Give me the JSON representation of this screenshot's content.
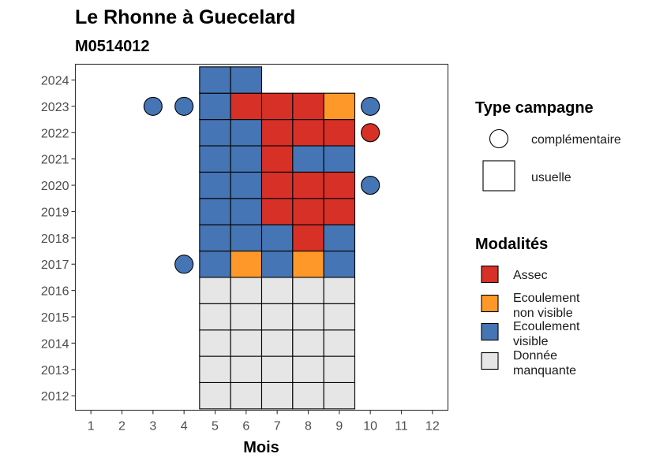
{
  "chart_data": {
    "type": "heatmap",
    "title": "Le Rhonne à Guecelard",
    "subtitle": "M0514012",
    "xlabel": "Mois",
    "ylabel": "",
    "x_ticks": [
      "1",
      "2",
      "3",
      "4",
      "5",
      "6",
      "7",
      "8",
      "9",
      "10",
      "11",
      "12"
    ],
    "y_ticks": [
      "2012",
      "2013",
      "2014",
      "2015",
      "2016",
      "2017",
      "2018",
      "2019",
      "2020",
      "2021",
      "2022",
      "2023",
      "2024"
    ],
    "xlim": [
      0.5,
      12.5
    ],
    "ylim": [
      2011.45,
      2024.6
    ],
    "grid": false,
    "colors": {
      "Assec": "#d73027",
      "Ecoulement non visible": "#fe9929",
      "Ecoulement visible": "#4575b4",
      "Donnée manquante": "#e6e6e6"
    },
    "cells": [
      {
        "year": 2012,
        "month": 5,
        "type": "usuelle",
        "modalite": "Donnée manquante"
      },
      {
        "year": 2012,
        "month": 6,
        "type": "usuelle",
        "modalite": "Donnée manquante"
      },
      {
        "year": 2012,
        "month": 7,
        "type": "usuelle",
        "modalite": "Donnée manquante"
      },
      {
        "year": 2012,
        "month": 8,
        "type": "usuelle",
        "modalite": "Donnée manquante"
      },
      {
        "year": 2012,
        "month": 9,
        "type": "usuelle",
        "modalite": "Donnée manquante"
      },
      {
        "year": 2013,
        "month": 5,
        "type": "usuelle",
        "modalite": "Donnée manquante"
      },
      {
        "year": 2013,
        "month": 6,
        "type": "usuelle",
        "modalite": "Donnée manquante"
      },
      {
        "year": 2013,
        "month": 7,
        "type": "usuelle",
        "modalite": "Donnée manquante"
      },
      {
        "year": 2013,
        "month": 8,
        "type": "usuelle",
        "modalite": "Donnée manquante"
      },
      {
        "year": 2013,
        "month": 9,
        "type": "usuelle",
        "modalite": "Donnée manquante"
      },
      {
        "year": 2014,
        "month": 5,
        "type": "usuelle",
        "modalite": "Donnée manquante"
      },
      {
        "year": 2014,
        "month": 6,
        "type": "usuelle",
        "modalite": "Donnée manquante"
      },
      {
        "year": 2014,
        "month": 7,
        "type": "usuelle",
        "modalite": "Donnée manquante"
      },
      {
        "year": 2014,
        "month": 8,
        "type": "usuelle",
        "modalite": "Donnée manquante"
      },
      {
        "year": 2014,
        "month": 9,
        "type": "usuelle",
        "modalite": "Donnée manquante"
      },
      {
        "year": 2015,
        "month": 5,
        "type": "usuelle",
        "modalite": "Donnée manquante"
      },
      {
        "year": 2015,
        "month": 6,
        "type": "usuelle",
        "modalite": "Donnée manquante"
      },
      {
        "year": 2015,
        "month": 7,
        "type": "usuelle",
        "modalite": "Donnée manquante"
      },
      {
        "year": 2015,
        "month": 8,
        "type": "usuelle",
        "modalite": "Donnée manquante"
      },
      {
        "year": 2015,
        "month": 9,
        "type": "usuelle",
        "modalite": "Donnée manquante"
      },
      {
        "year": 2016,
        "month": 5,
        "type": "usuelle",
        "modalite": "Donnée manquante"
      },
      {
        "year": 2016,
        "month": 6,
        "type": "usuelle",
        "modalite": "Donnée manquante"
      },
      {
        "year": 2016,
        "month": 7,
        "type": "usuelle",
        "modalite": "Donnée manquante"
      },
      {
        "year": 2016,
        "month": 8,
        "type": "usuelle",
        "modalite": "Donnée manquante"
      },
      {
        "year": 2016,
        "month": 9,
        "type": "usuelle",
        "modalite": "Donnée manquante"
      },
      {
        "year": 2017,
        "month": 4,
        "type": "complémentaire",
        "modalite": "Ecoulement visible"
      },
      {
        "year": 2017,
        "month": 5,
        "type": "usuelle",
        "modalite": "Ecoulement visible"
      },
      {
        "year": 2017,
        "month": 6,
        "type": "usuelle",
        "modalite": "Ecoulement non visible"
      },
      {
        "year": 2017,
        "month": 7,
        "type": "usuelle",
        "modalite": "Ecoulement visible"
      },
      {
        "year": 2017,
        "month": 8,
        "type": "usuelle",
        "modalite": "Ecoulement non visible"
      },
      {
        "year": 2017,
        "month": 9,
        "type": "usuelle",
        "modalite": "Ecoulement visible"
      },
      {
        "year": 2018,
        "month": 5,
        "type": "usuelle",
        "modalite": "Ecoulement visible"
      },
      {
        "year": 2018,
        "month": 6,
        "type": "usuelle",
        "modalite": "Ecoulement visible"
      },
      {
        "year": 2018,
        "month": 7,
        "type": "usuelle",
        "modalite": "Ecoulement visible"
      },
      {
        "year": 2018,
        "month": 8,
        "type": "usuelle",
        "modalite": "Assec"
      },
      {
        "year": 2018,
        "month": 9,
        "type": "usuelle",
        "modalite": "Ecoulement visible"
      },
      {
        "year": 2019,
        "month": 5,
        "type": "usuelle",
        "modalite": "Ecoulement visible"
      },
      {
        "year": 2019,
        "month": 6,
        "type": "usuelle",
        "modalite": "Ecoulement visible"
      },
      {
        "year": 2019,
        "month": 7,
        "type": "usuelle",
        "modalite": "Assec"
      },
      {
        "year": 2019,
        "month": 8,
        "type": "usuelle",
        "modalite": "Assec"
      },
      {
        "year": 2019,
        "month": 9,
        "type": "usuelle",
        "modalite": "Assec"
      },
      {
        "year": 2020,
        "month": 5,
        "type": "usuelle",
        "modalite": "Ecoulement visible"
      },
      {
        "year": 2020,
        "month": 6,
        "type": "usuelle",
        "modalite": "Ecoulement visible"
      },
      {
        "year": 2020,
        "month": 7,
        "type": "usuelle",
        "modalite": "Assec"
      },
      {
        "year": 2020,
        "month": 8,
        "type": "usuelle",
        "modalite": "Assec"
      },
      {
        "year": 2020,
        "month": 9,
        "type": "usuelle",
        "modalite": "Assec"
      },
      {
        "year": 2020,
        "month": 10,
        "type": "complémentaire",
        "modalite": "Ecoulement visible"
      },
      {
        "year": 2021,
        "month": 5,
        "type": "usuelle",
        "modalite": "Ecoulement visible"
      },
      {
        "year": 2021,
        "month": 6,
        "type": "usuelle",
        "modalite": "Ecoulement visible"
      },
      {
        "year": 2021,
        "month": 7,
        "type": "usuelle",
        "modalite": "Assec"
      },
      {
        "year": 2021,
        "month": 8,
        "type": "usuelle",
        "modalite": "Ecoulement visible"
      },
      {
        "year": 2021,
        "month": 9,
        "type": "usuelle",
        "modalite": "Ecoulement visible"
      },
      {
        "year": 2022,
        "month": 5,
        "type": "usuelle",
        "modalite": "Ecoulement visible"
      },
      {
        "year": 2022,
        "month": 6,
        "type": "usuelle",
        "modalite": "Ecoulement visible"
      },
      {
        "year": 2022,
        "month": 7,
        "type": "usuelle",
        "modalite": "Assec"
      },
      {
        "year": 2022,
        "month": 8,
        "type": "usuelle",
        "modalite": "Assec"
      },
      {
        "year": 2022,
        "month": 9,
        "type": "usuelle",
        "modalite": "Assec"
      },
      {
        "year": 2022,
        "month": 10,
        "type": "complémentaire",
        "modalite": "Assec"
      },
      {
        "year": 2023,
        "month": 3,
        "type": "complémentaire",
        "modalite": "Ecoulement visible"
      },
      {
        "year": 2023,
        "month": 4,
        "type": "complémentaire",
        "modalite": "Ecoulement visible"
      },
      {
        "year": 2023,
        "month": 5,
        "type": "usuelle",
        "modalite": "Ecoulement visible"
      },
      {
        "year": 2023,
        "month": 6,
        "type": "usuelle",
        "modalite": "Assec"
      },
      {
        "year": 2023,
        "month": 7,
        "type": "usuelle",
        "modalite": "Assec"
      },
      {
        "year": 2023,
        "month": 8,
        "type": "usuelle",
        "modalite": "Assec"
      },
      {
        "year": 2023,
        "month": 9,
        "type": "usuelle",
        "modalite": "Ecoulement non visible"
      },
      {
        "year": 2023,
        "month": 10,
        "type": "complémentaire",
        "modalite": "Ecoulement visible"
      },
      {
        "year": 2024,
        "month": 5,
        "type": "usuelle",
        "modalite": "Ecoulement visible"
      },
      {
        "year": 2024,
        "month": 6,
        "type": "usuelle",
        "modalite": "Ecoulement visible"
      }
    ],
    "legend": {
      "position": "right",
      "type_title": "Type campagne",
      "type_entries": [
        {
          "label": "complémentaire",
          "shape": "circle"
        },
        {
          "label": "usuelle",
          "shape": "square"
        }
      ],
      "modalites_title": "Modalités",
      "modalites_entries": [
        {
          "line1": "Assec",
          "line2": "",
          "key": "Assec"
        },
        {
          "line1": "Ecoulement",
          "line2": "non visible",
          "key": "Ecoulement non visible"
        },
        {
          "line1": "Ecoulement",
          "line2": "visible",
          "key": "Ecoulement visible"
        },
        {
          "line1": "Donnée",
          "line2": "manquante",
          "key": "Donnée manquante"
        }
      ]
    }
  }
}
